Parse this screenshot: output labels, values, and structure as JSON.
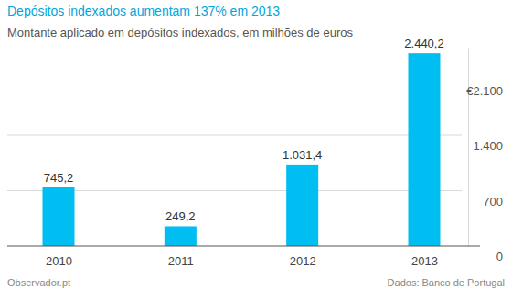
{
  "chart_data": {
    "type": "bar",
    "title": "Depósitos indexados aumentam 137% em 2013",
    "subtitle": "Montante aplicado em depósitos indexados, em milhões de euros",
    "categories": [
      "2010",
      "2011",
      "2012",
      "2013"
    ],
    "values": [
      745.2,
      249.2,
      1031.4,
      2440.2
    ],
    "value_labels": [
      "745,2",
      "249,2",
      "1.031,4",
      "2.440,2"
    ],
    "data_labels": true,
    "color": "#00bdf2",
    "ylim": [
      0,
      2500
    ],
    "yticks": [
      0,
      700,
      {
        "value": 1400,
        "label": "1.400"
      },
      {
        "value": 2100,
        "label": "€2.100"
      }
    ],
    "grid": true,
    "annotations": [
      "Observador.pt",
      "Dados: Banco de Portugal"
    ]
  }
}
